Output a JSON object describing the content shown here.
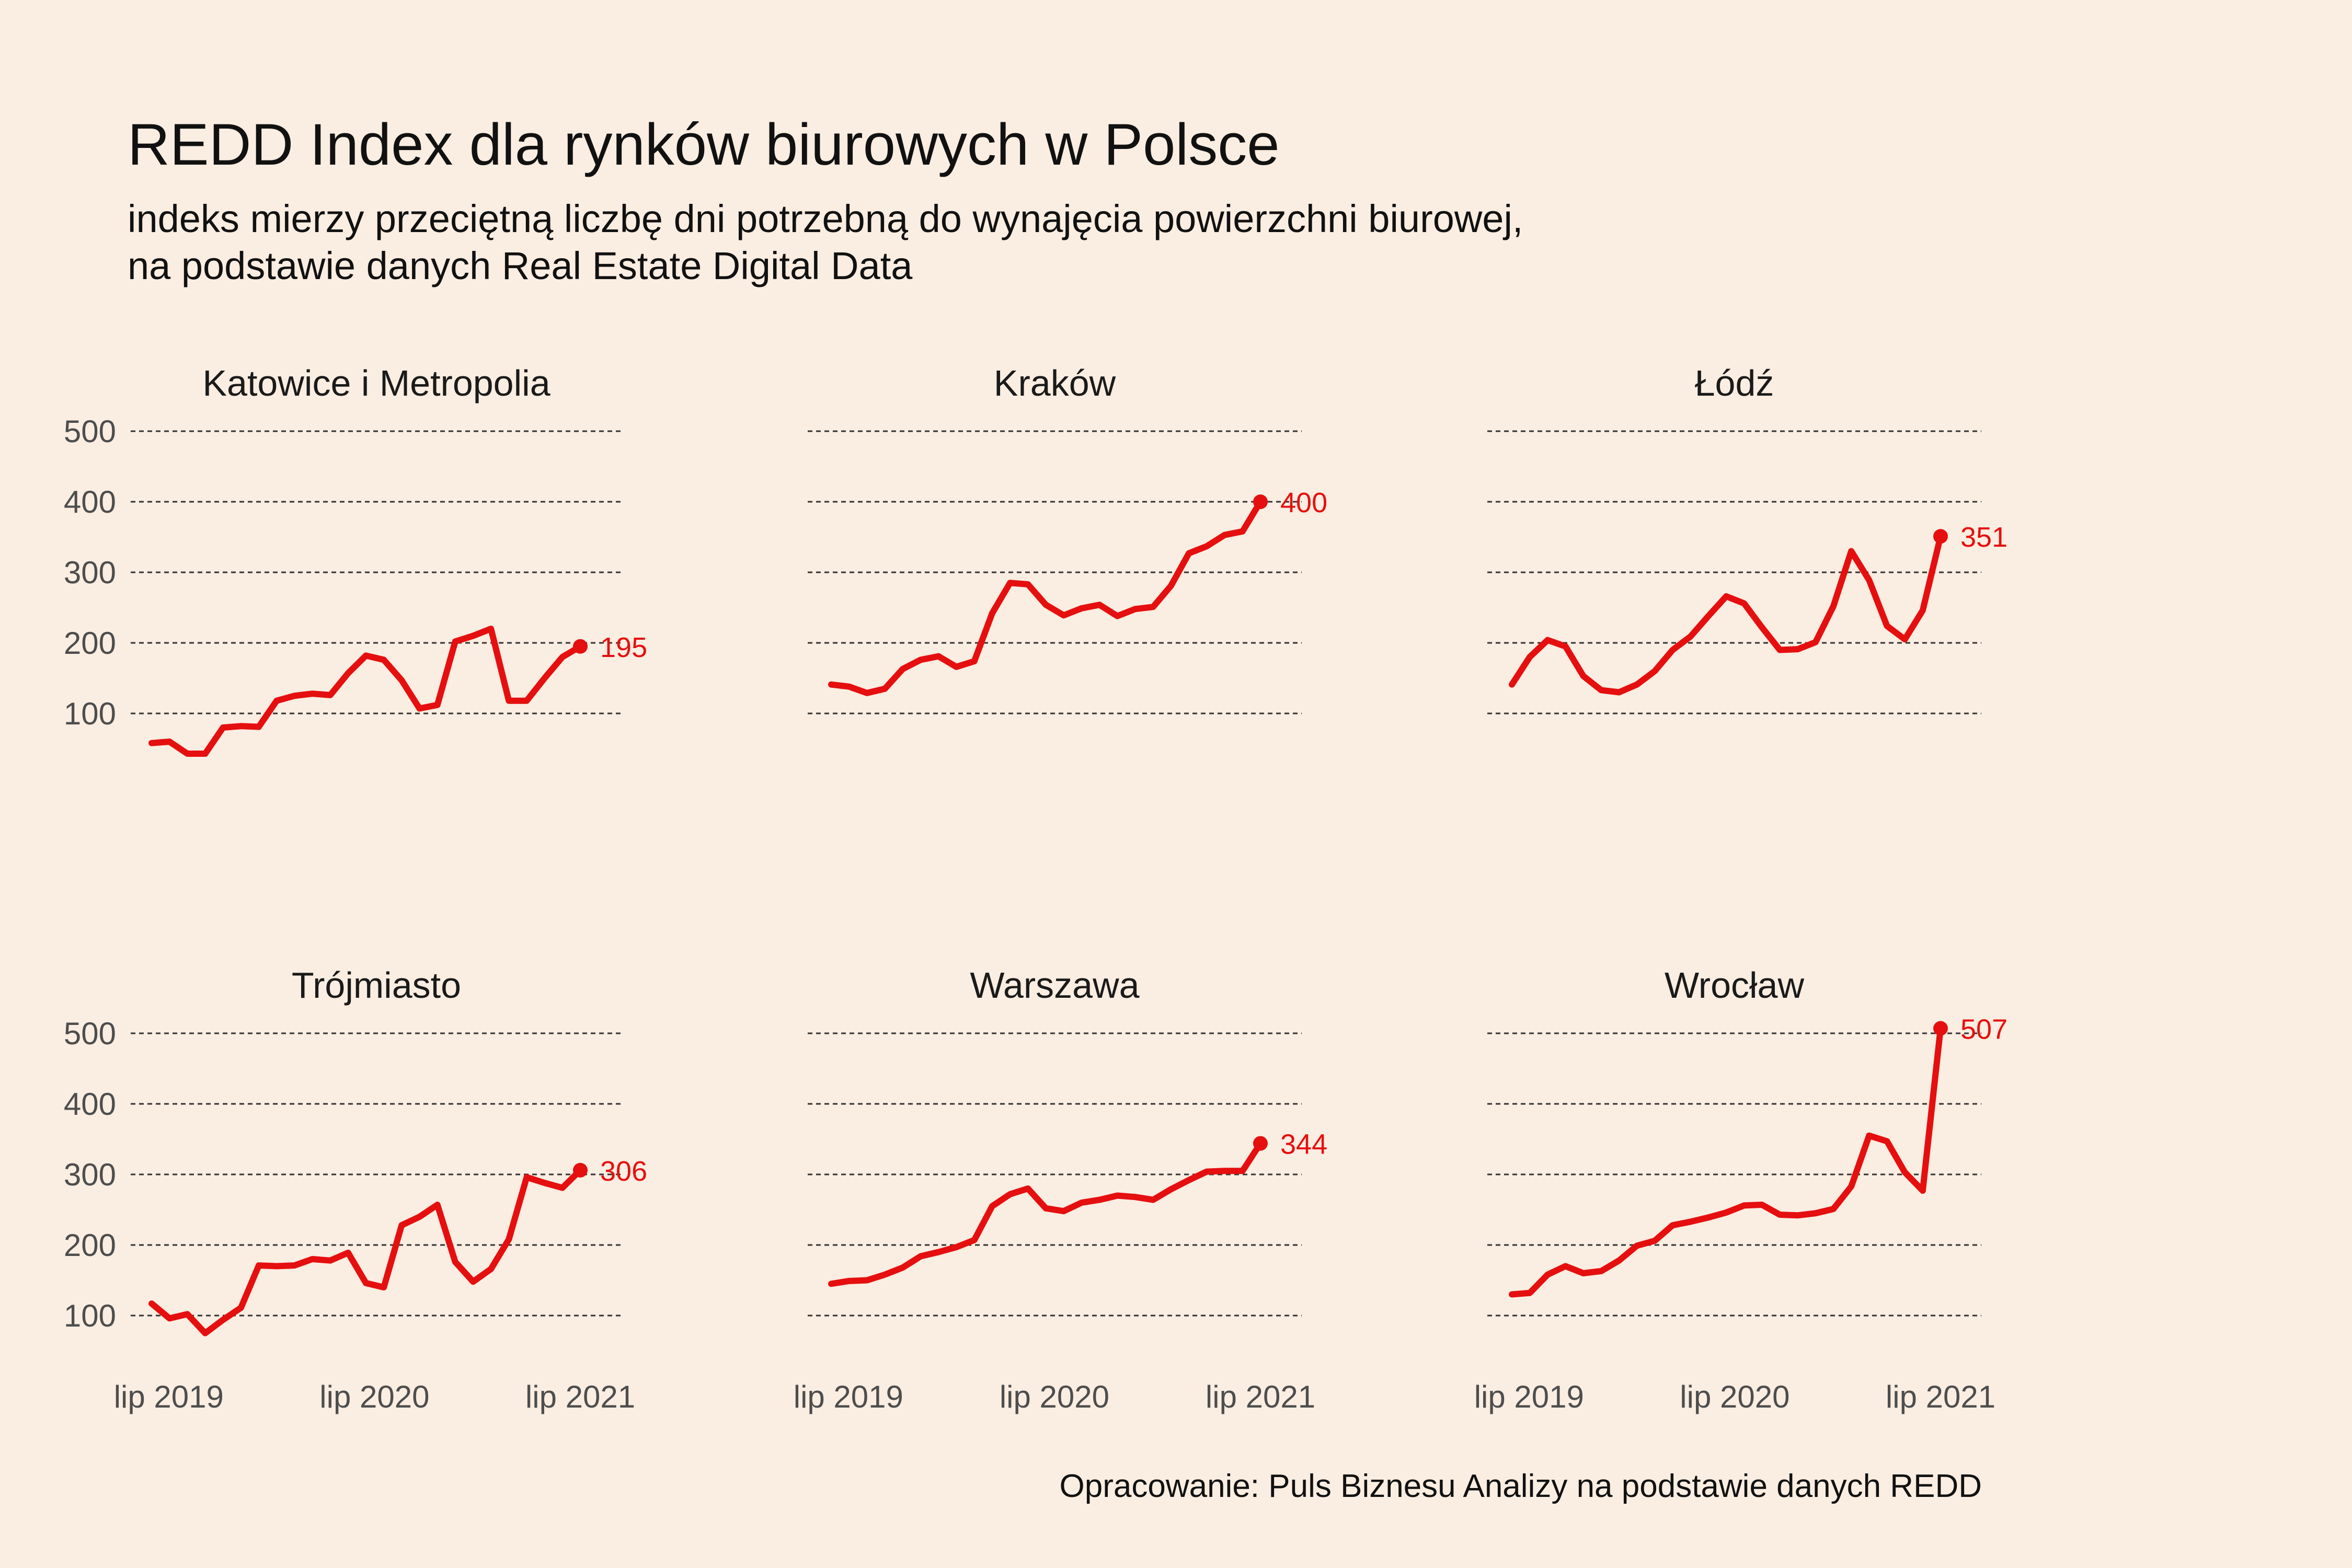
{
  "title": "REDD Index dla rynków biurowych w Polsce",
  "subtitle_line1": "indeks mierzy przeciętną liczbę dni potrzebną do wynajęcia powierzchni biurowej,",
  "subtitle_line2": "na podstawie danych Real Estate Digital Data",
  "caption": "Opracowanie: Puls Biznesu Analizy na podstawie danych REDD",
  "colors": {
    "line": "#e50f0f",
    "background": "#faede1",
    "grid": "#333333",
    "axis_text": "#4d4d4d"
  },
  "chart_data": {
    "type": "line",
    "layout": "small-multiples",
    "y_ticks": [
      100,
      200,
      300,
      400,
      500
    ],
    "x_ticks": [
      "lip 2019",
      "lip 2020",
      "lip 2021"
    ],
    "x_tick_dates": [
      "2019-07",
      "2020-07",
      "2021-07"
    ],
    "grid": "horizontal dashed",
    "x_start": "2019-06",
    "x_end": "2021-07",
    "panels": [
      {
        "name": "Katowice i Metropolia",
        "label": "195",
        "values": [
          58,
          60,
          43,
          43,
          80,
          82,
          81,
          118,
          125,
          128,
          126,
          157,
          182,
          176,
          147,
          107,
          112,
          202,
          210,
          220,
          118,
          118,
          150,
          180,
          195
        ]
      },
      {
        "name": "Kraków",
        "label": "400",
        "values": [
          141,
          138,
          129,
          135,
          163,
          176,
          181,
          166,
          174,
          242,
          285,
          283,
          254,
          239,
          249,
          254,
          238,
          248,
          251,
          281,
          327,
          337,
          353,
          358,
          400
        ]
      },
      {
        "name": "Łódź",
        "label": "351",
        "values": [
          141,
          180,
          204,
          195,
          153,
          133,
          130,
          141,
          160,
          190,
          209,
          238,
          266,
          256,
          222,
          190,
          191,
          201,
          252,
          330,
          289,
          224,
          205,
          246,
          351
        ]
      },
      {
        "name": "Trójmiasto",
        "label": "306",
        "values": [
          117,
          96,
          102,
          75,
          94,
          111,
          171,
          170,
          171,
          180,
          178,
          189,
          146,
          140,
          228,
          240,
          257,
          176,
          148,
          166,
          208,
          296,
          288,
          281,
          306
        ]
      },
      {
        "name": "Warszawa",
        "label": "344",
        "values": [
          145,
          149,
          150,
          158,
          168,
          184,
          190,
          197,
          207,
          255,
          272,
          280,
          252,
          248,
          260,
          264,
          270,
          268,
          264,
          279,
          292,
          304,
          305,
          305,
          344
        ]
      },
      {
        "name": "Wrocław",
        "label": "507",
        "values": [
          130,
          132,
          158,
          170,
          160,
          163,
          178,
          199,
          206,
          228,
          233,
          239,
          246,
          256,
          257,
          243,
          242,
          245,
          251,
          283,
          355,
          347,
          303,
          277,
          507
        ]
      }
    ]
  }
}
